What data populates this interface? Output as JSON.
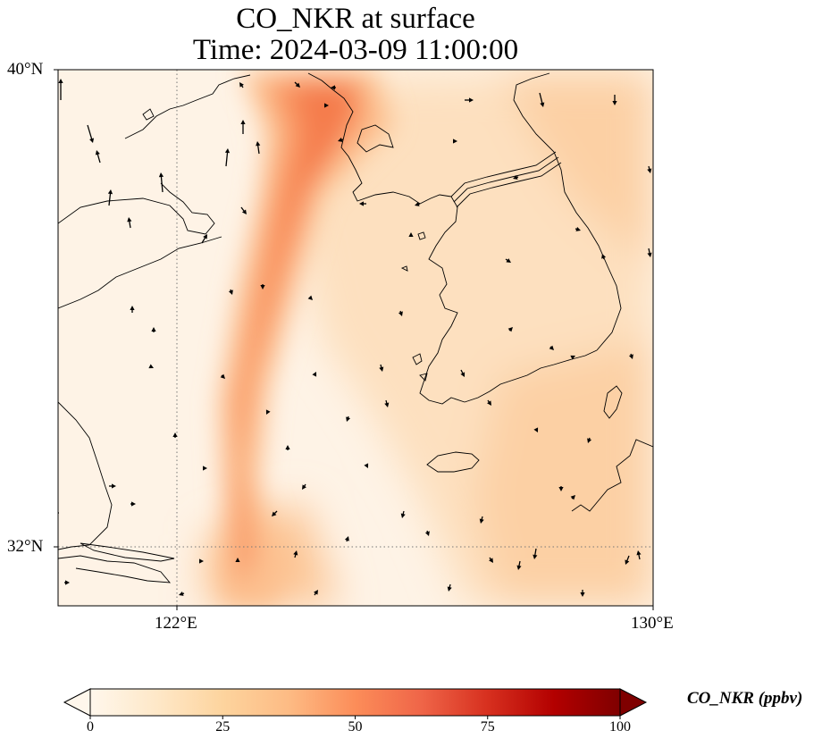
{
  "title": {
    "line1": "CO_NKR at surface",
    "line2": "Time: 2024-03-09 11:00:00"
  },
  "map": {
    "variable": "CO_NKR",
    "level": "surface",
    "time": "2024-03-09 11:00:00",
    "lon_range": [
      120.0,
      130.0
    ],
    "lat_range": [
      31.0,
      40.0
    ],
    "lat_ticks": [
      {
        "value": 40,
        "label": "40°N"
      },
      {
        "value": 32,
        "label": "32°N"
      }
    ],
    "lon_ticks": [
      {
        "value": 122,
        "label": "122°E"
      },
      {
        "value": 130,
        "label": "130°E"
      }
    ],
    "gridlines": {
      "style": "dotted",
      "lat": [
        32
      ],
      "lon": [
        122
      ]
    },
    "plume_colors": {
      "background": "#fef3e6",
      "low": "#fde0bf",
      "mid": "#fcbf8e",
      "high": "#f9935f",
      "peak": "#f47a4c"
    },
    "features": [
      "coastlines",
      "wind-vectors",
      "concentration-field"
    ]
  },
  "colorbar": {
    "label": "CO_NKR (ppbv)",
    "min": 0,
    "max": 100,
    "ticks": [
      "0",
      "25",
      "50",
      "75",
      "100"
    ],
    "extend": "both",
    "colormap": "OrRd",
    "stops": [
      "#fff7ec",
      "#fee8c8",
      "#fdd49e",
      "#fdbb84",
      "#fc8d59",
      "#ef6548",
      "#d7301f",
      "#b30000",
      "#7f0000"
    ]
  }
}
